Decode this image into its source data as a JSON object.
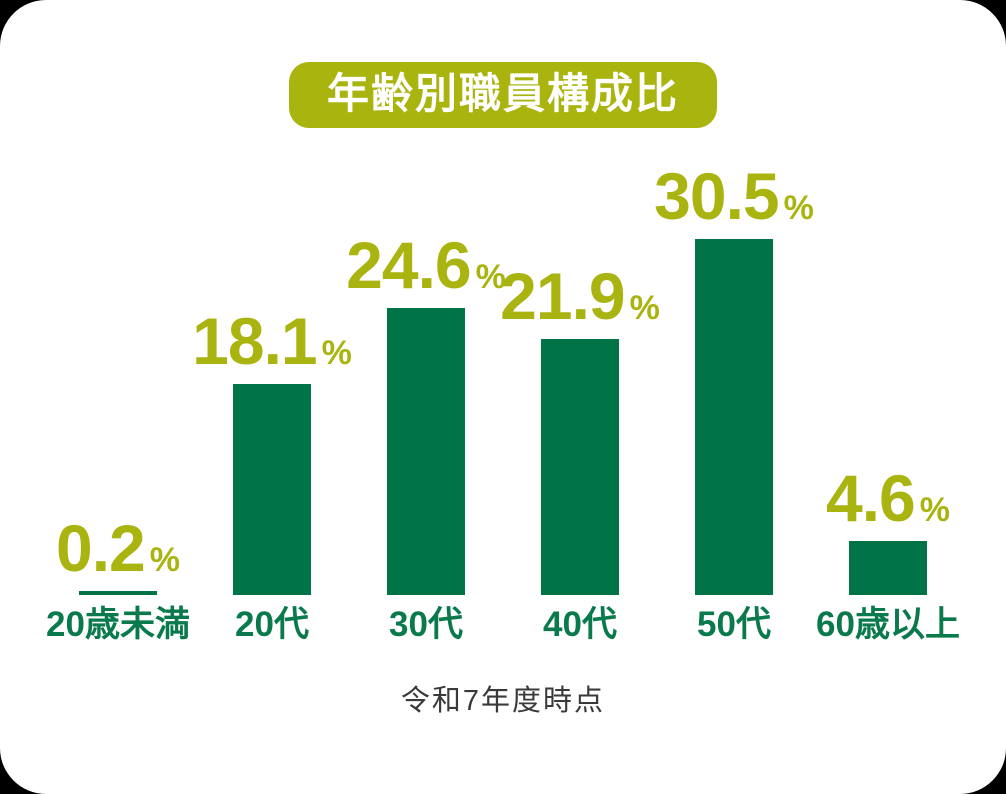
{
  "title": "年齢別職員構成比",
  "footnote": "令和7年度時点",
  "colors": {
    "badge_bg": "#a9b40e",
    "badge_text": "#ffffff",
    "bar": "#007347",
    "value_text": "#a9b410",
    "category_text": "#0a7a4c",
    "footnote_text": "#3a3a3a",
    "card_bg": "#ffffff",
    "page_bg": "#000000"
  },
  "chart_data": {
    "type": "bar",
    "title": "年齢別職員構成比",
    "categories": [
      "20歳未満",
      "20代",
      "30代",
      "40代",
      "50代",
      "60歳以上"
    ],
    "values": [
      0.2,
      18.1,
      24.6,
      21.9,
      30.5,
      4.6
    ],
    "unit": "%",
    "value_label_format": "one-decimal",
    "note": "令和7年度時点",
    "xlabel": "",
    "ylabel": "",
    "ylim": [
      0,
      32
    ],
    "grid": false,
    "legend": false,
    "bar_color": "#007347"
  }
}
